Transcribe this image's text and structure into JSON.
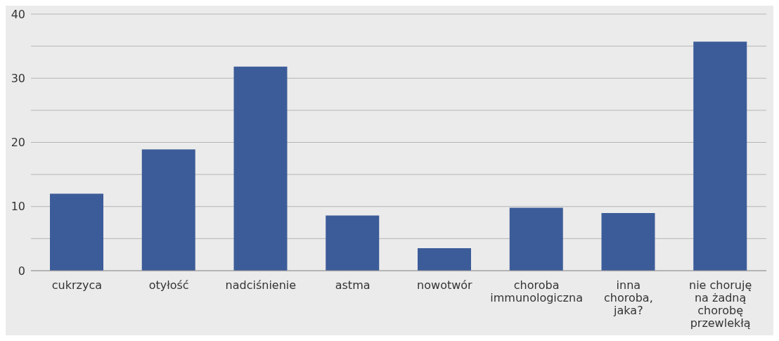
{
  "chart_data": {
    "type": "bar",
    "categories": [
      "cukrzyca",
      "otyłość",
      "nadciśnienie",
      "astma",
      "nowotwór",
      "choroba immunologiczna",
      "inna choroba, jaka?",
      "nie choruję na żadną chorobę przewlekłą"
    ],
    "values": [
      12.0,
      18.9,
      31.8,
      8.6,
      3.5,
      9.8,
      9.0,
      35.7
    ],
    "color": "#3c5c99",
    "ylim": [
      0,
      40
    ],
    "yticks": [
      0,
      {
        "value": 5,
        "label": null
      },
      10,
      {
        "value": 15,
        "label": null
      },
      20,
      {
        "value": 25,
        "label": null
      },
      30,
      {
        "value": 35,
        "label": null
      },
      40
    ],
    "grid": "y"
  }
}
